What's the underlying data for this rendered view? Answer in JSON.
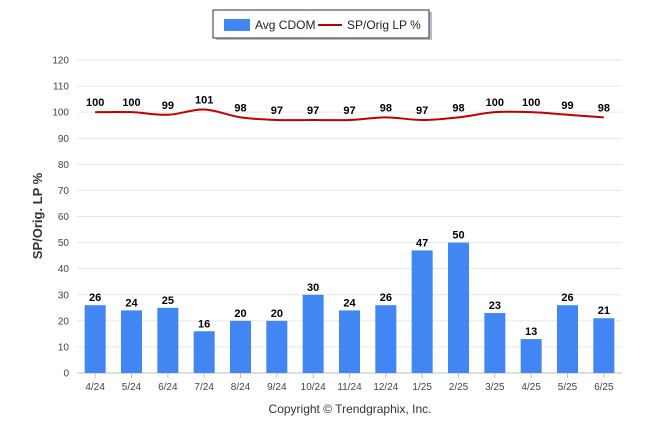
{
  "chart_data": {
    "type": "bar",
    "title": "",
    "xlabel": "",
    "ylabel": "SP/Orig. LP %",
    "ylim": [
      0,
      120
    ],
    "y_ticks": [
      "0",
      "10",
      "20",
      "30",
      "40",
      "50",
      "60",
      "70",
      "80",
      "90",
      "100",
      "110",
      "120"
    ],
    "grid": true,
    "legend_position": "top-center",
    "categories": [
      "4/24",
      "5/24",
      "6/24",
      "7/24",
      "8/24",
      "9/24",
      "10/24",
      "11/24",
      "12/24",
      "1/25",
      "2/25",
      "3/25",
      "4/25",
      "5/25",
      "6/25"
    ],
    "series": [
      {
        "name": "Avg CDOM",
        "type": "bar",
        "color": "#4286f4",
        "values": [
          26,
          24,
          25,
          16,
          20,
          20,
          30,
          24,
          26,
          47,
          50,
          23,
          13,
          26,
          21
        ]
      },
      {
        "name": "SP/Orig LP %",
        "type": "line",
        "color": "#c00000",
        "values": [
          100,
          100,
          99,
          101,
          98,
          97,
          97,
          97,
          98,
          97,
          98,
          100,
          100,
          99,
          98
        ]
      }
    ]
  },
  "footer": {
    "copyright": "Copyright © Trendgraphix, Inc."
  }
}
